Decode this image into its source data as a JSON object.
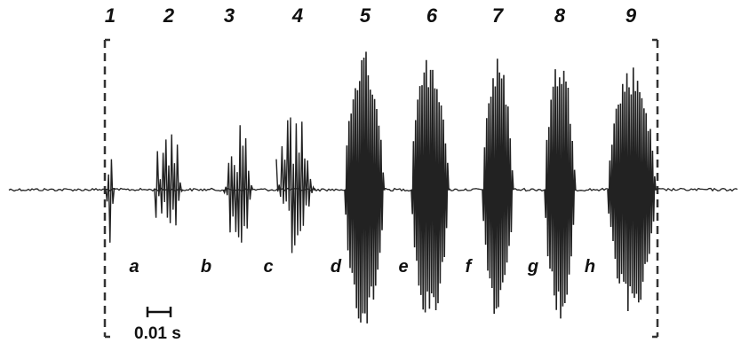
{
  "chart_data": {
    "type": "line",
    "pulse_numbers": [
      "1",
      "2",
      "3",
      "4",
      "5",
      "6",
      "7",
      "8",
      "9"
    ],
    "interval_labels": [
      "a",
      "b",
      "c",
      "d",
      "e",
      "f",
      "g",
      "h"
    ],
    "scale_bar": {
      "label": "0.01 s",
      "value_seconds": 0.01
    },
    "pulses": [
      {
        "label": "1",
        "amplitude": 0.45
      },
      {
        "label": "2",
        "amplitude": 0.42
      },
      {
        "label": "3",
        "amplitude": 0.48
      },
      {
        "label": "4",
        "amplitude": 0.52
      },
      {
        "label": "5",
        "amplitude": 1.0
      },
      {
        "label": "6",
        "amplitude": 0.98
      },
      {
        "label": "7",
        "amplitude": 0.95
      },
      {
        "label": "8",
        "amplitude": 0.96
      },
      {
        "label": "9",
        "amplitude": 0.9
      }
    ],
    "colors": {
      "waveform": "#222222",
      "bracket": "#333333"
    }
  }
}
